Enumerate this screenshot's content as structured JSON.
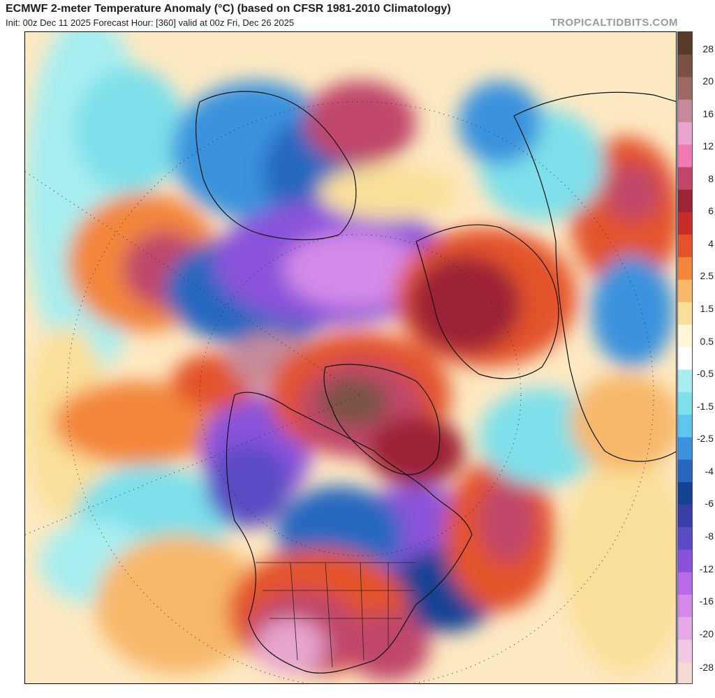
{
  "header": {
    "title": "ECMWF 2-meter Temperature Anomaly (°C) (based on CFSR 1981-2010 Climatology)",
    "subtitle": "Init: 00z Dec 11 2025   Forecast Hour: [360]   valid at 00z Fri, Dec 26 2025",
    "brand": "TROPICALTIDBITS.COM"
  },
  "map": {
    "projection": "north-polar-stereographic",
    "variable": "2-meter temperature anomaly",
    "units": "°C"
  },
  "colorbar": {
    "labels": [
      "28",
      "20",
      "16",
      "12",
      "8",
      "6",
      "4",
      "2.5",
      "1.5",
      "0.5",
      "-0.5",
      "-1.5",
      "-2.5",
      "-4",
      "-6",
      "-8",
      "-12",
      "-16",
      "-20",
      "-28"
    ],
    "colors": [
      "#5a3b2a",
      "#7a5244",
      "#9b6a62",
      "#c48a9a",
      "#e6a4cf",
      "#f07ab4",
      "#c0476a",
      "#9c2436",
      "#c82a2a",
      "#e3522a",
      "#f3863a",
      "#f7b86a",
      "#fadf9a",
      "#fff6d8",
      "#ffffff",
      "#a8eef0",
      "#7ee0ea",
      "#5fc6ee",
      "#3b93dd",
      "#2767c0",
      "#174294",
      "#3a3fa8",
      "#5a4cc4",
      "#8a52da",
      "#b86be6",
      "#d48ae8",
      "#e5a9ea",
      "#f0c7e4",
      "#f7d9d4"
    ]
  }
}
